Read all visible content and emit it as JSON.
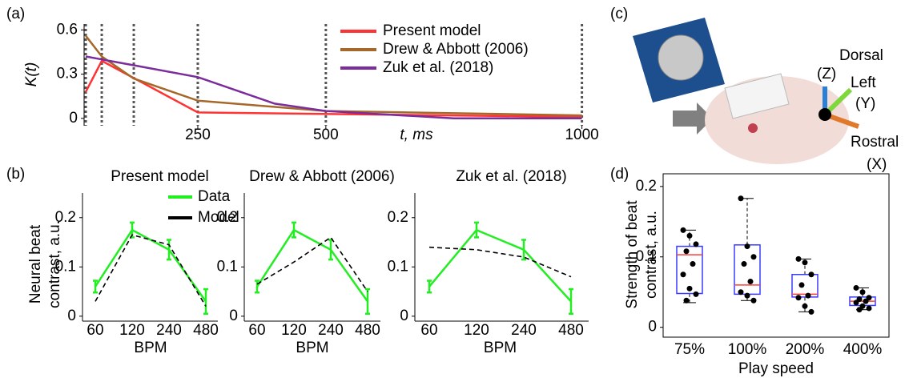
{
  "chart_data": [
    {
      "type": "line",
      "panel": "(a)",
      "ylabel": "K(t)",
      "xlabel": "t, ms",
      "xlim": [
        28,
        1010
      ],
      "ylim": [
        -0.05,
        0.64
      ],
      "xticks": [
        250,
        500,
        1000
      ],
      "yticks": [
        0,
        0.3,
        0.6
      ],
      "vlines": [
        31.25,
        62.5,
        125,
        250,
        500,
        1000
      ],
      "legend": "upper right",
      "series": [
        {
          "name": "Present model",
          "color": "#ff3333",
          "x": [
            31.25,
            62.5,
            250,
            1000
          ],
          "values": [
            0.18,
            0.39,
            0.04,
            0.01
          ]
        },
        {
          "name": "Drew & Abbott (2006)",
          "color": "#a5682a",
          "x": [
            31.25,
            62.5,
            125,
            250,
            500,
            1000
          ],
          "values": [
            0.56,
            0.42,
            0.27,
            0.12,
            0.05,
            0.02
          ]
        },
        {
          "name": "Zuk et al. (2018)",
          "color": "#7b2d9b",
          "x": [
            31.25,
            62.5,
            125,
            250,
            400,
            500,
            750,
            1000
          ],
          "values": [
            0.42,
            0.4,
            0.36,
            0.28,
            0.1,
            0.05,
            0.0,
            0.0
          ]
        }
      ]
    },
    {
      "type": "errorline",
      "panel": "(b)",
      "title": "Present model",
      "categories": [
        "60",
        "120",
        "240",
        "480"
      ],
      "xlabel": "BPM",
      "ylabel": [
        "Neural beat",
        "contrast, a.u."
      ],
      "ylim": [
        -0.01,
        0.25
      ],
      "yticks": [
        0,
        0.1,
        0.2
      ],
      "legend": "upper right",
      "series": [
        {
          "name": "Data",
          "color": "#22ee22",
          "values": [
            0.06,
            0.175,
            0.135,
            0.03
          ],
          "errors": [
            0.012,
            0.015,
            0.02,
            0.025
          ]
        },
        {
          "name": "Model",
          "color": "#000000",
          "dashed": true,
          "values": [
            0.03,
            0.165,
            0.145,
            0.02
          ]
        }
      ]
    },
    {
      "type": "errorline",
      "title": "Drew & Abbott (2006)",
      "categories": [
        "60",
        "120",
        "240",
        "480"
      ],
      "xlabel": "BPM",
      "ylim": [
        -0.01,
        0.25
      ],
      "yticks": [
        0,
        0.1,
        0.2
      ],
      "series": [
        {
          "color": "#22ee22",
          "values": [
            0.06,
            0.175,
            0.135,
            0.03
          ],
          "errors": [
            0.012,
            0.015,
            0.02,
            0.025
          ]
        },
        {
          "color": "#000000",
          "dashed": true,
          "values": [
            0.065,
            0.11,
            0.16,
            0.05
          ]
        }
      ]
    },
    {
      "type": "errorline",
      "title": "Zuk et al. (2018)",
      "categories": [
        "60",
        "120",
        "240",
        "480"
      ],
      "xlabel": "BPM",
      "ylim": [
        -0.01,
        0.25
      ],
      "yticks": [
        0,
        0.1,
        0.2
      ],
      "series": [
        {
          "color": "#22ee22",
          "values": [
            0.06,
            0.175,
            0.135,
            0.03
          ],
          "errors": [
            0.012,
            0.015,
            0.02,
            0.025
          ]
        },
        {
          "color": "#000000",
          "dashed": true,
          "values": [
            0.14,
            0.135,
            0.12,
            0.08
          ]
        }
      ]
    },
    {
      "type": "box",
      "panel": "(d)",
      "categories": [
        "75%",
        "100%",
        "200%",
        "400%"
      ],
      "xlabel": "Play speed",
      "ylabel": [
        "Strength of beat",
        "contrast, a.u."
      ],
      "ylim": [
        -0.014,
        0.218
      ],
      "yticks": [
        0,
        0.1,
        0.2
      ],
      "box_color": "#3b3bff",
      "median_color": "#ff3b3b",
      "boxes": [
        {
          "low": 0.035,
          "q1": 0.048,
          "median": 0.103,
          "q3": 0.115,
          "high": 0.138,
          "points": [
            0.138,
            0.13,
            0.118,
            0.108,
            0.09,
            0.075,
            0.055,
            0.047,
            0.038
          ]
        },
        {
          "low": 0.038,
          "q1": 0.047,
          "median": 0.06,
          "q3": 0.117,
          "high": 0.183,
          "points": [
            0.183,
            0.115,
            0.1,
            0.09,
            0.065,
            0.05,
            0.045,
            0.038
          ]
        },
        {
          "low": 0.022,
          "q1": 0.043,
          "median": 0.047,
          "q3": 0.075,
          "high": 0.097,
          "points": [
            0.097,
            0.092,
            0.075,
            0.06,
            0.045,
            0.042,
            0.03,
            0.022
          ]
        },
        {
          "low": 0.025,
          "q1": 0.031,
          "median": 0.037,
          "q3": 0.043,
          "high": 0.056,
          "points": [
            0.056,
            0.05,
            0.042,
            0.04,
            0.037,
            0.035,
            0.03,
            0.027,
            0.025
          ]
        }
      ]
    }
  ],
  "photo": {
    "panel": "(c)",
    "labels": [
      "Dorsal",
      "(Z)",
      "Left",
      "(Y)",
      "Rostral",
      "(X)"
    ]
  }
}
